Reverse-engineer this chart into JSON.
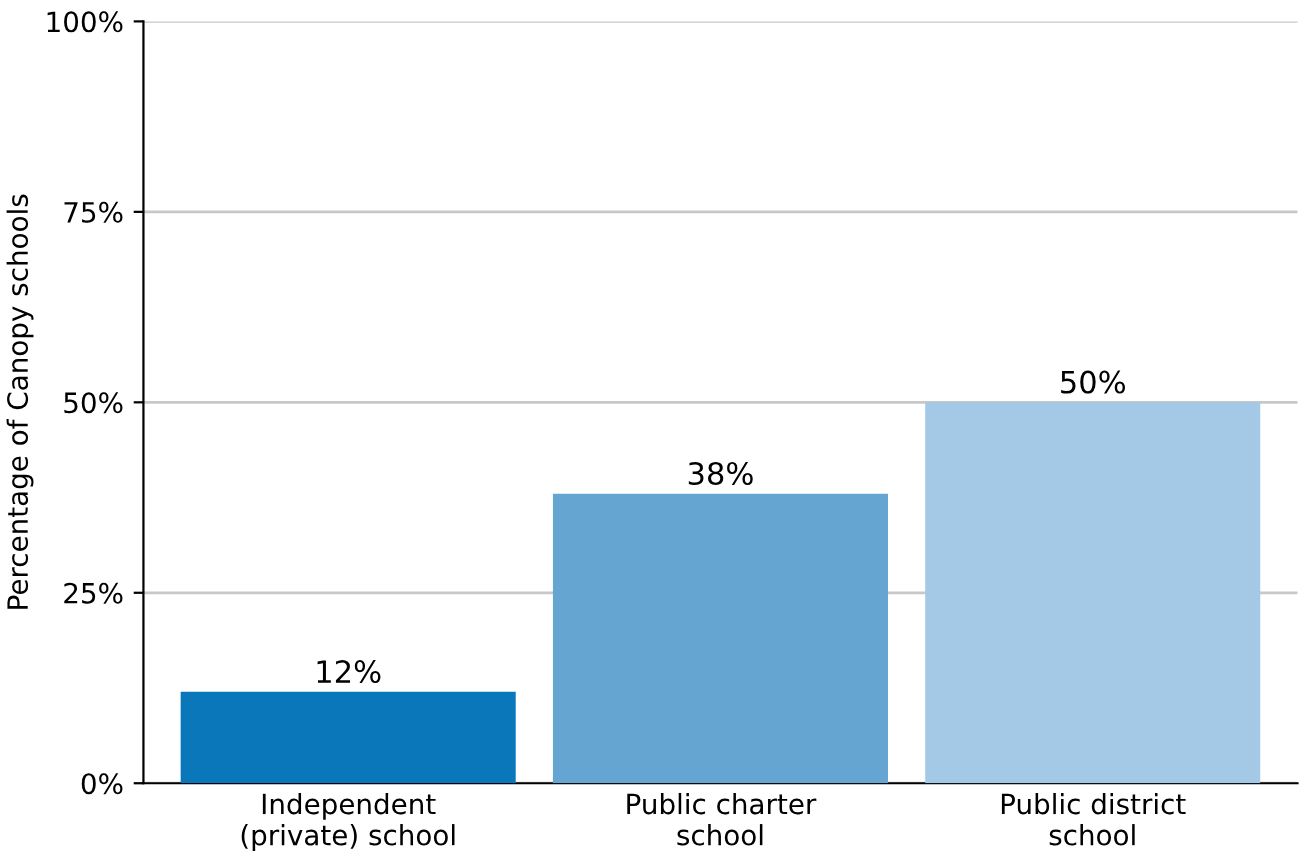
{
  "chart_data": {
    "type": "bar",
    "ylabel": "Percentage of Canopy schools",
    "categories": [
      "Independent\n(private) school",
      "Public charter\nschool",
      "Public district\nschool"
    ],
    "values": [
      12,
      38,
      50
    ],
    "colors": [
      "#0a77ba",
      "#64a5d2",
      "#a3c9e6"
    ],
    "value_labels": [
      "12%",
      "38%",
      "50%"
    ],
    "ylim": [
      0,
      100
    ],
    "yticks": [
      {
        "value": 0,
        "label": "0%"
      },
      {
        "value": 25,
        "label": "25%"
      },
      {
        "value": 50,
        "label": "50%"
      },
      {
        "value": 75,
        "label": "75%"
      },
      {
        "value": 100,
        "label": "100%"
      }
    ],
    "grid": "y",
    "legend": false
  }
}
